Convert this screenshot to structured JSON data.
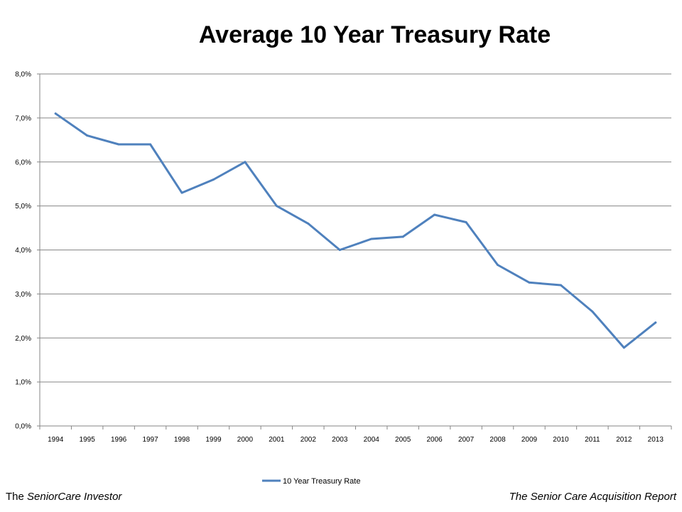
{
  "page": {
    "footer_left_prefix": "The ",
    "footer_left_italic": "SeniorCare Investor",
    "footer_right": "The Senior Care Acquisition Report"
  },
  "colors": {
    "series": "#4f81bd",
    "grid": "#868686",
    "axis": "#868686"
  },
  "chart_data": {
    "type": "line",
    "title": "Average 10 Year Treasury Rate",
    "xlabel": "",
    "ylabel": "",
    "categories": [
      "1994",
      "1995",
      "1996",
      "1997",
      "1998",
      "1999",
      "2000",
      "2001",
      "2002",
      "2003",
      "2004",
      "2005",
      "2006",
      "2007",
      "2008",
      "2009",
      "2010",
      "2011",
      "2012",
      "2013"
    ],
    "series": [
      {
        "name": "10 Year Treasury Rate",
        "values": [
          7.1,
          6.6,
          6.4,
          6.4,
          5.3,
          5.6,
          6.0,
          5.0,
          4.6,
          4.0,
          4.25,
          4.3,
          4.8,
          4.63,
          3.66,
          3.26,
          3.2,
          2.6,
          1.78,
          2.35
        ]
      }
    ],
    "ylim": [
      0,
      8
    ],
    "yticks": [
      0,
      1,
      2,
      3,
      4,
      5,
      6,
      7,
      8
    ],
    "ytick_labels": [
      "0,0%",
      "1,0%",
      "2,0%",
      "3,0%",
      "4,0%",
      "5,0%",
      "6,0%",
      "7,0%",
      "8,0%"
    ],
    "grid": true,
    "legend_position": "bottom"
  }
}
